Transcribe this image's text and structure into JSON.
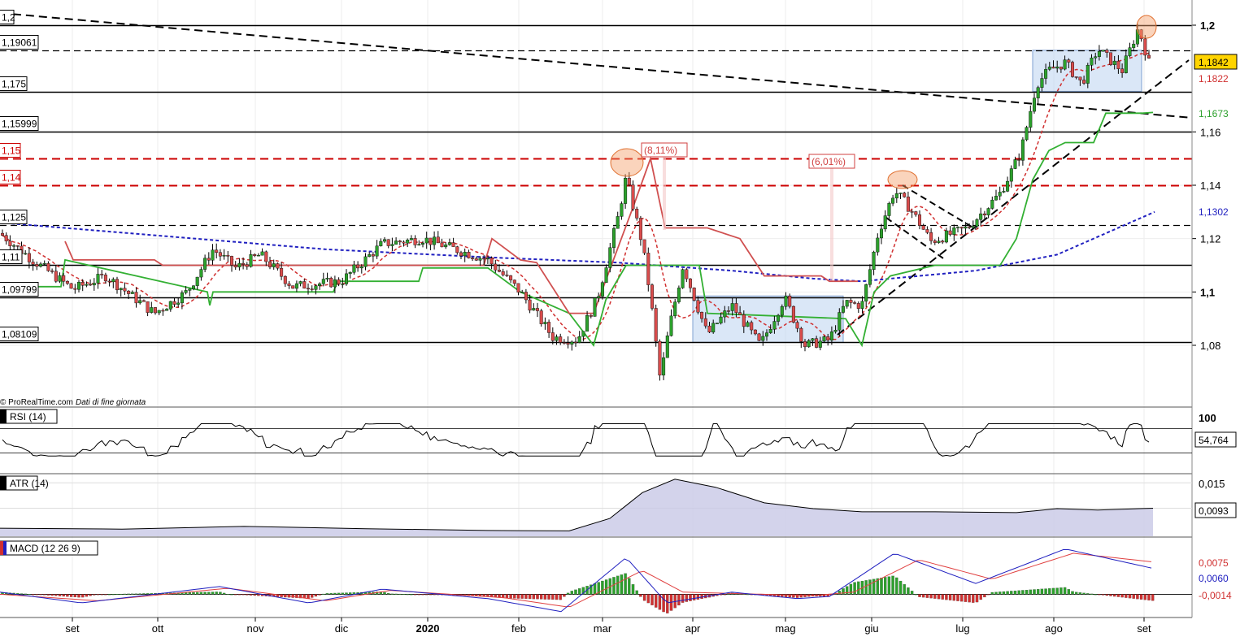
{
  "chart_data": {
    "type": "candlestick",
    "footer": {
      "brand": "© ProRealTime.com",
      "note": "Dati di fine giornata"
    },
    "x_axis": {
      "labels": [
        "set",
        "ott",
        "nov",
        "dic",
        "2020",
        "feb",
        "mar",
        "apr",
        "mag",
        "giu",
        "lug",
        "ago",
        "set"
      ]
    },
    "price_panel": {
      "y_range": [
        1.06,
        1.21
      ],
      "y_ticks": [
        {
          "value": 1.2,
          "label": "1,2",
          "bold": true
        },
        {
          "value": 1.16,
          "label": "1,16",
          "bold": false
        },
        {
          "value": 1.14,
          "label": "1,14",
          "bold": false
        },
        {
          "value": 1.12,
          "label": "1,12",
          "bold": false
        },
        {
          "value": 1.1,
          "label": "1,1",
          "bold": true
        },
        {
          "value": 1.08,
          "label": "1,08",
          "bold": false
        }
      ],
      "last_values": [
        {
          "label": "1,1842",
          "value": 1.1842,
          "bg": "#ffd400",
          "color": "#000000"
        },
        {
          "label": "1,1822",
          "value": 1.1822,
          "bg": "#ffffff",
          "color": "#d03030"
        },
        {
          "label": "1,1673",
          "value": 1.1673,
          "bg": "#ffffff",
          "color": "#2ca02c"
        },
        {
          "label": "1,1302",
          "value": 1.1302,
          "bg": "#ffffff",
          "color": "#2020c0"
        }
      ],
      "levels": [
        {
          "label": "1,2",
          "value": 1.2,
          "style": "solid",
          "color": "#000000"
        },
        {
          "label": "1,19061",
          "value": 1.19061,
          "style": "dashed",
          "color": "#000000"
        },
        {
          "label": "1,175",
          "value": 1.175,
          "style": "solid",
          "color": "#000000"
        },
        {
          "label": "1,15999",
          "value": 1.15999,
          "style": "solid",
          "color": "#000000"
        },
        {
          "label": "1,15",
          "value": 1.15,
          "style": "dashed",
          "color": "#cc0000"
        },
        {
          "label": "1,14",
          "value": 1.14,
          "style": "dashed",
          "color": "#cc0000"
        },
        {
          "label": "1,125",
          "value": 1.125,
          "style": "dashed",
          "color": "#000000"
        },
        {
          "label": "1,11",
          "value": 1.11,
          "style": "solid",
          "color": "#000000"
        },
        {
          "label": "1,09799",
          "value": 1.09799,
          "style": "solid",
          "color": "#000000"
        },
        {
          "label": "1,08109",
          "value": 1.08109,
          "style": "solid",
          "color": "#000000"
        }
      ],
      "annotations": [
        {
          "text": "(8,11%)",
          "color": "#d04040"
        },
        {
          "text": "(6,01%)",
          "color": "#d04040"
        }
      ],
      "series": [
        {
          "name": "ma20",
          "color": "#d03030",
          "style": "dashed"
        },
        {
          "name": "ma200",
          "color": "#2020c0",
          "style": "dashed"
        },
        {
          "name": "stop_long",
          "color": "#2ca02c",
          "style": "solid"
        },
        {
          "name": "stop_short",
          "color": "#d05050",
          "style": "solid"
        }
      ]
    },
    "rsi_panel": {
      "title": "RSI (14)",
      "y_tick": "100",
      "last_value": "54,764",
      "range": [
        0,
        100
      ],
      "upper": 70,
      "lower": 30
    },
    "atr_panel": {
      "title": "ATR (14)",
      "y_tick": "0,015",
      "last_value": "0,0093",
      "range": [
        0.003,
        0.0165
      ]
    },
    "macd_panel": {
      "title": "MACD (12 26 9)",
      "values": [
        {
          "label": "0,0075",
          "color": "#d03030"
        },
        {
          "label": "0,0060",
          "color": "#2020c0"
        },
        {
          "label": "-0,0014",
          "color": "#d03030"
        }
      ],
      "range": [
        -0.005,
        0.0125
      ]
    },
    "colors": {
      "up_candle": "#2ca02c",
      "down_candle": "#d94c4c",
      "box_fill": "#bcd3f0",
      "atr_fill": "#c8c8e6",
      "circle": "#f5a06a"
    }
  }
}
